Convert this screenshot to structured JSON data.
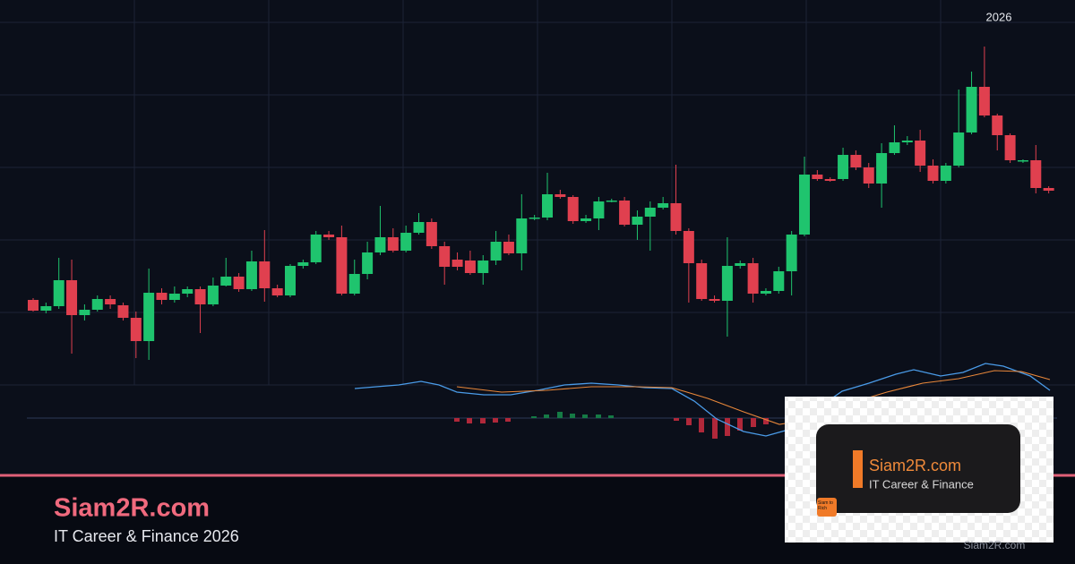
{
  "chart_data": {
    "type": "candlestick",
    "annotation": "2026",
    "open": [
      95,
      83,
      88,
      117,
      78,
      84,
      96,
      89,
      75,
      49,
      103,
      95,
      102,
      107,
      90,
      111,
      121,
      107,
      138,
      108,
      100,
      133,
      137,
      168,
      165,
      102,
      124,
      148,
      165,
      150,
      170,
      182,
      155,
      140,
      139,
      125,
      139,
      160,
      147,
      186,
      187,
      213,
      210,
      183,
      186,
      205,
      206,
      179,
      188,
      198,
      203,
      172,
      136,
      96,
      94,
      133,
      136,
      102,
      105,
      127,
      168,
      235,
      230,
      230,
      257,
      243,
      225,
      259,
      271,
      273,
      245,
      228,
      245,
      282,
      333,
      301,
      279,
      250,
      251,
      220
    ],
    "high": [
      97,
      92,
      142,
      140,
      90,
      100,
      100,
      92,
      82,
      130,
      108,
      110,
      110,
      110,
      120,
      142,
      125,
      150,
      173,
      112,
      135,
      140,
      172,
      172,
      178,
      140,
      160,
      200,
      175,
      178,
      192,
      186,
      160,
      148,
      150,
      145,
      172,
      168,
      213,
      190,
      237,
      218,
      212,
      190,
      210,
      208,
      210,
      195,
      205,
      210,
      246,
      175,
      140,
      100,
      165,
      139,
      142,
      108,
      132,
      172,
      255,
      240,
      232,
      265,
      262,
      248,
      270,
      290,
      278,
      285,
      252,
      248,
      330,
      350,
      378,
      303,
      281,
      252,
      268,
      222
    ],
    "low": [
      82,
      80,
      85,
      35,
      72,
      82,
      85,
      72,
      30,
      28,
      90,
      92,
      98,
      58,
      88,
      110,
      104,
      105,
      93,
      98,
      98,
      130,
      135,
      162,
      100,
      100,
      118,
      145,
      148,
      148,
      168,
      152,
      112,
      128,
      123,
      112,
      134,
      145,
      128,
      184,
      184,
      208,
      180,
      181,
      173,
      204,
      177,
      162,
      150,
      196,
      168,
      92,
      94,
      92,
      54,
      130,
      92,
      100,
      102,
      100,
      166,
      228,
      227,
      228,
      240,
      220,
      198,
      257,
      268,
      238,
      225,
      225,
      243,
      280,
      299,
      262,
      248,
      248,
      214,
      214
    ],
    "close": [
      83,
      88,
      117,
      78,
      84,
      96,
      90,
      75,
      49,
      103,
      95,
      102,
      107,
      90,
      111,
      121,
      107,
      138,
      108,
      100,
      133,
      137,
      168,
      165,
      102,
      124,
      148,
      165,
      150,
      170,
      182,
      155,
      132,
      132,
      125,
      139,
      160,
      147,
      186,
      187,
      213,
      210,
      183,
      186,
      205,
      206,
      179,
      188,
      198,
      203,
      172,
      136,
      96,
      94,
      133,
      136,
      102,
      105,
      127,
      168,
      235,
      230,
      228,
      257,
      243,
      225,
      259,
      271,
      273,
      245,
      228,
      245,
      282,
      333,
      301,
      279,
      251,
      251,
      220,
      217
    ],
    "ylim": [
      0,
      430
    ],
    "up_color": "#1fc46e",
    "down_color": "#e0404f"
  },
  "branding": {
    "site": "Siam2R.com",
    "tagline": "IT Career & Finance 2026",
    "card_title": "Siam2R.com",
    "card_subtitle": "IT Career & Finance",
    "badge": "Siam to Rich",
    "watermark": "Siam2R.com"
  }
}
